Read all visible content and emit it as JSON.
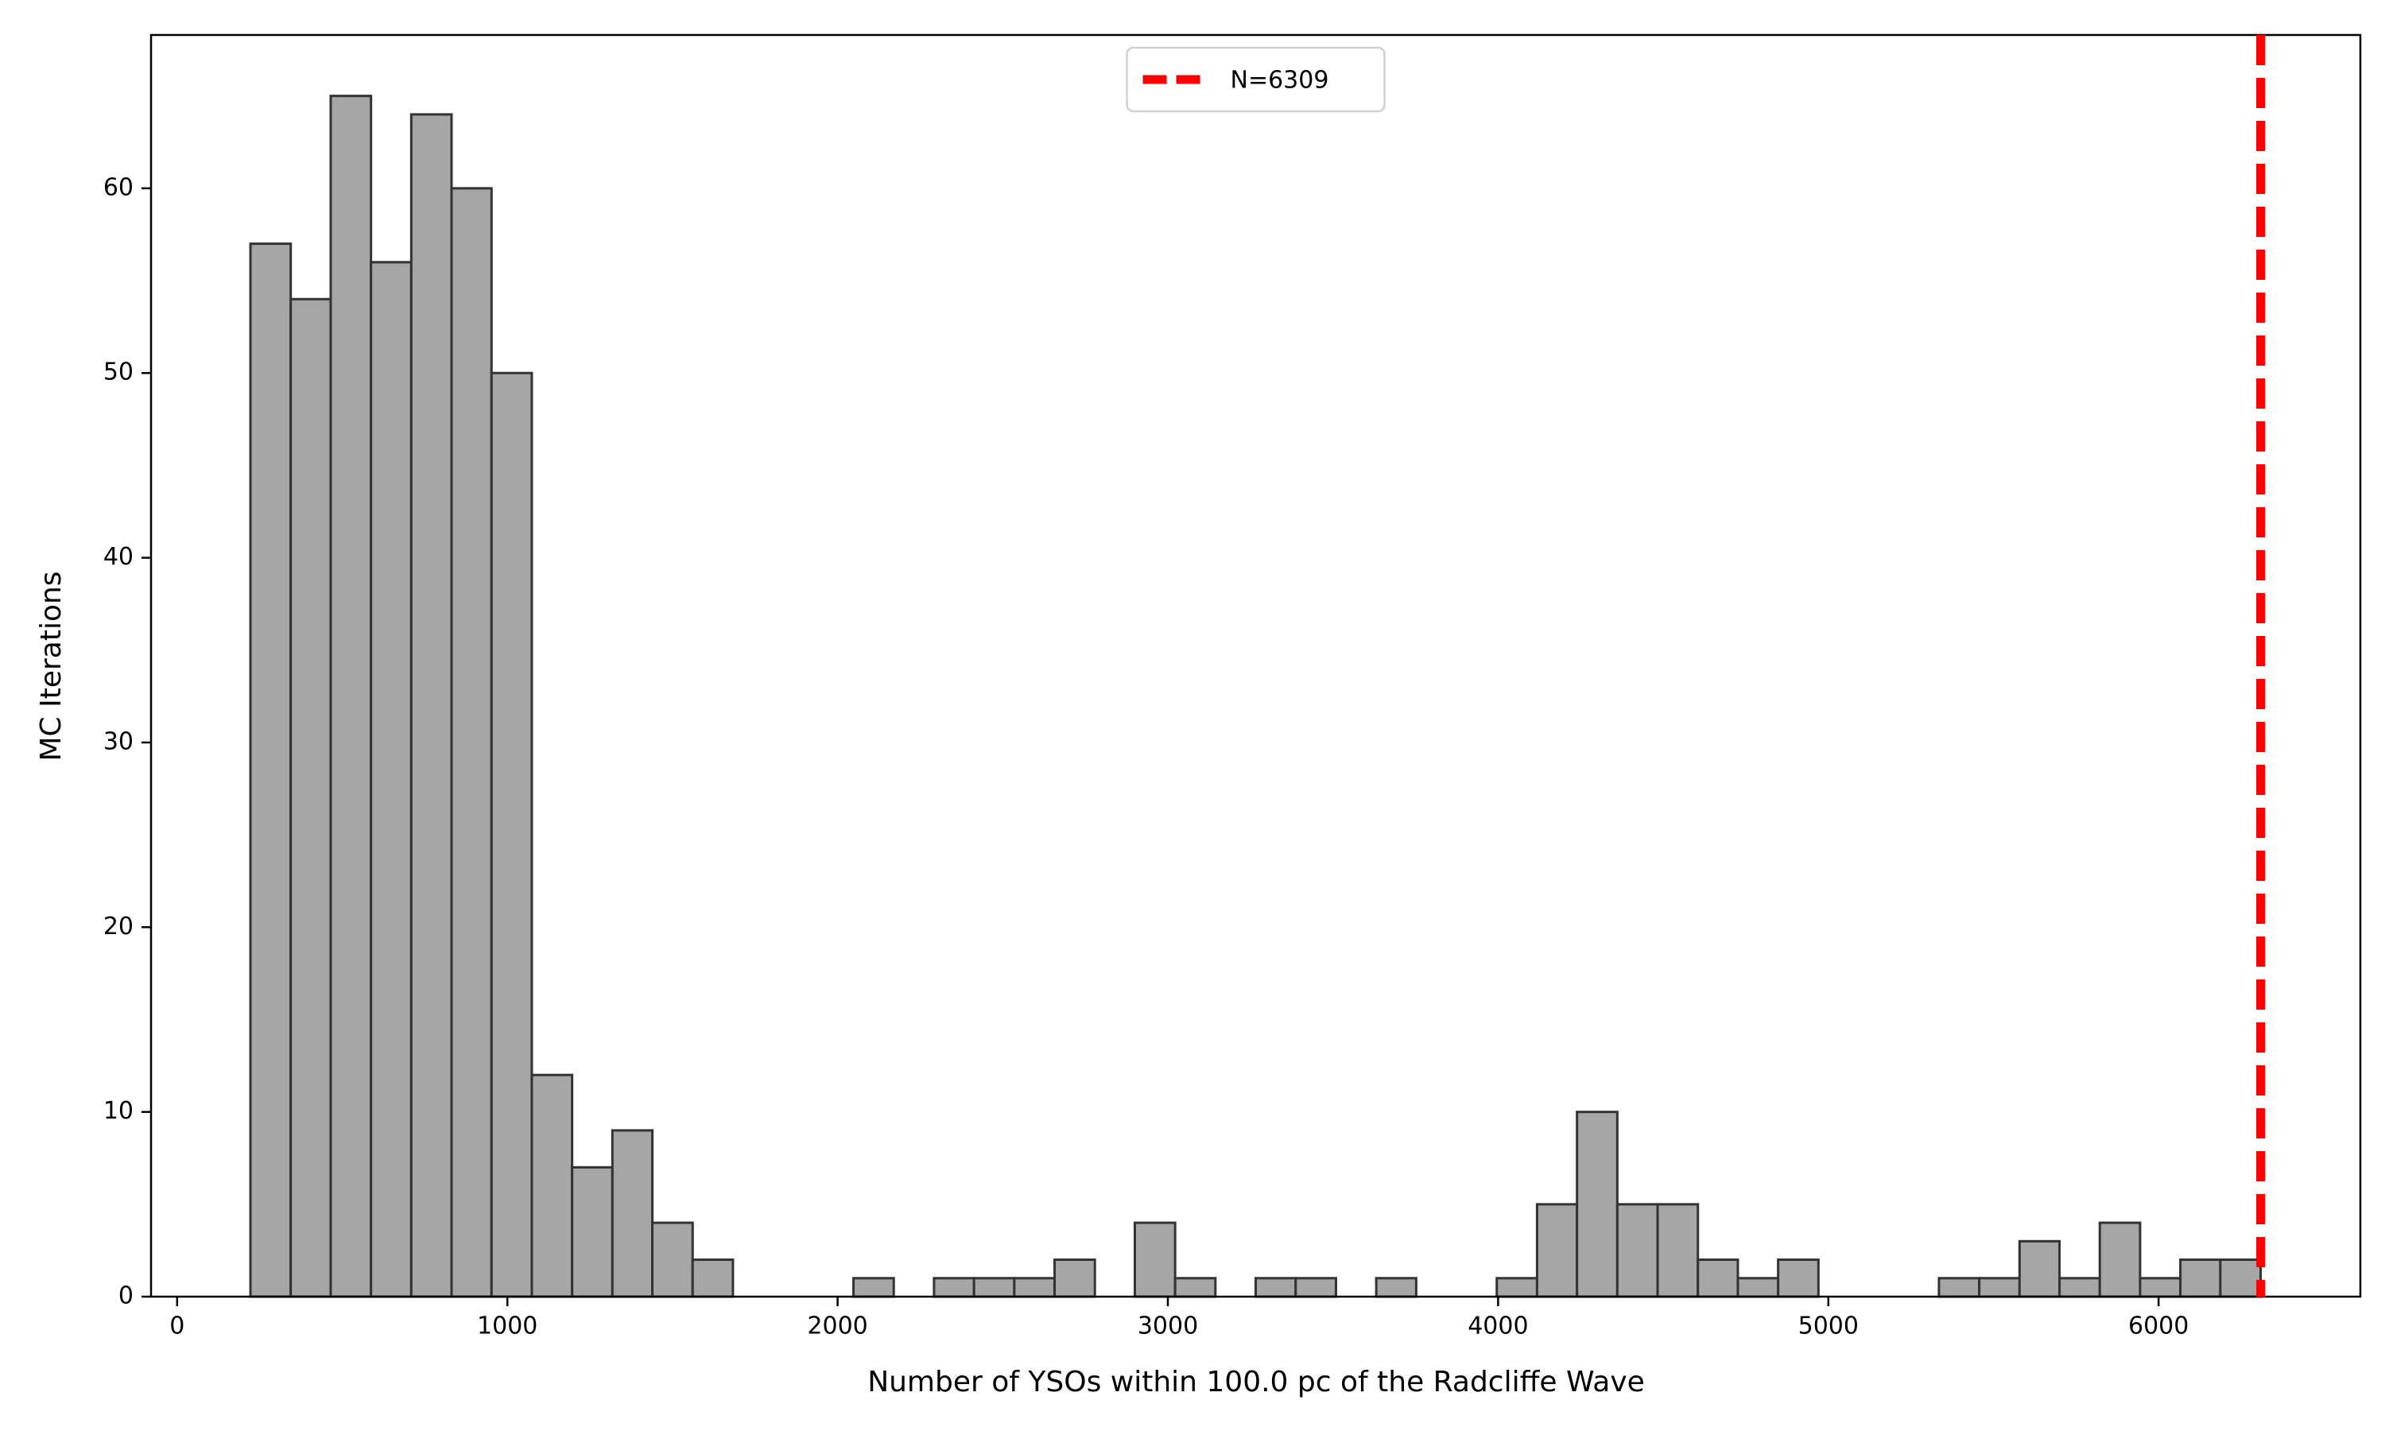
{
  "chart_data": {
    "type": "histogram",
    "x_label": "Number of YSOs within 100.0 pc of the Radcliffe Wave",
    "y_label": "MC Iterations",
    "bins": [
      222,
      344,
      465,
      587,
      709,
      831,
      952,
      1074,
      1196,
      1318,
      1439,
      1561,
      1683,
      1805,
      1926,
      2048,
      2170,
      2292,
      2413,
      2535,
      2657,
      2779,
      2900,
      3022,
      3144,
      3266,
      3387,
      3509,
      3631,
      3752,
      3874,
      3996,
      4118,
      4239,
      4361,
      4483,
      4605,
      4726,
      4848,
      4970,
      5092,
      5213,
      5335,
      5457,
      5579,
      5700,
      5822,
      5944,
      6066,
      6187,
      6309
    ],
    "counts": [
      57,
      54,
      65,
      56,
      64,
      60,
      50,
      12,
      7,
      9,
      4,
      2,
      0,
      0,
      0,
      1,
      0,
      1,
      1,
      1,
      2,
      0,
      4,
      1,
      0,
      1,
      1,
      0,
      1,
      0,
      0,
      1,
      5,
      10,
      5,
      5,
      2,
      1,
      2,
      0,
      0,
      0,
      1,
      1,
      3,
      1,
      4,
      1,
      2,
      2
    ],
    "color": "#a6a6a6",
    "edgecolor": "#333333",
    "vline": {
      "x": 6309,
      "label": "N=6309",
      "color": "#ff0000"
    },
    "legend": "upper center",
    "xlim": [
      -79,
      6611
    ],
    "xticks": [
      0,
      1000,
      2000,
      3000,
      4000,
      5000,
      6000
    ],
    "ylim": [
      0,
      68.3
    ],
    "yticks": [
      0,
      10,
      20,
      30,
      40,
      50,
      60
    ]
  }
}
